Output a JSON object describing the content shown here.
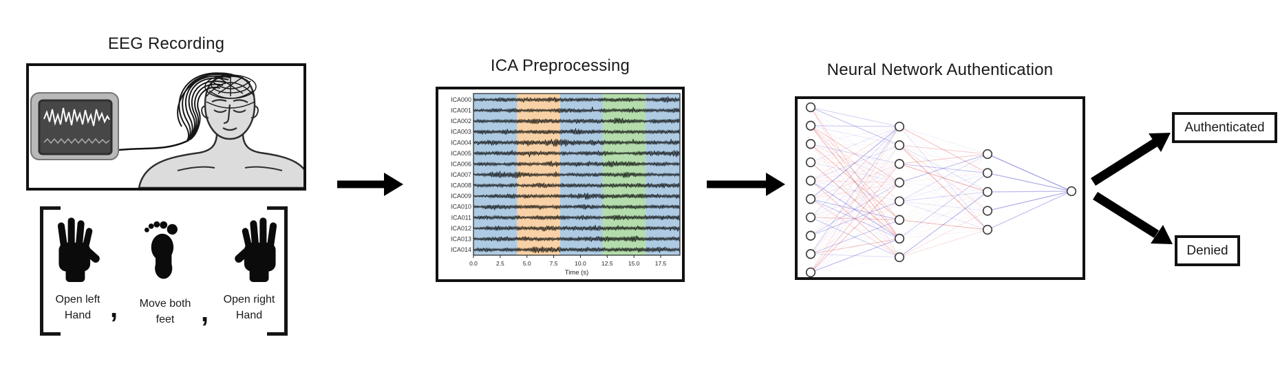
{
  "eeg": {
    "title": "EEG Recording",
    "tasks": [
      {
        "line1": "Open left",
        "line2": "Hand"
      },
      {
        "line1": "Move both",
        "line2": "feet"
      },
      {
        "line1": "Open right",
        "line2": "Hand"
      }
    ],
    "separator": ","
  },
  "ica": {
    "title": "ICA Preprocessing"
  },
  "nn": {
    "title": "Neural Network Authentication",
    "layers": [
      10,
      8,
      5,
      1
    ],
    "edge_colors": {
      "red": "#e05c5c",
      "blue": "#5c5cd6"
    },
    "node_fill": "#ffffff",
    "node_stroke": "#3d3d3d"
  },
  "results": {
    "authenticated": "Authenticated",
    "denied": "Denied"
  },
  "chart_data": {
    "type": "line",
    "subtype": "multichannel-ica-components",
    "title": "",
    "xlabel": "Time (s)",
    "ylabel": "",
    "channels": [
      "ICA000",
      "ICA001",
      "ICA002",
      "ICA003",
      "ICA004",
      "ICA005",
      "ICA006",
      "ICA007",
      "ICA008",
      "ICA009",
      "ICA010",
      "ICA011",
      "ICA012",
      "ICA013",
      "ICA014"
    ],
    "x_ticks": [
      0.0,
      2.5,
      5.0,
      7.5,
      10.0,
      12.5,
      15.0,
      17.5
    ],
    "xlim": [
      0,
      19.3
    ],
    "grid": false,
    "regions": [
      {
        "from": 0.0,
        "to": 4.1,
        "color": "#aecbe3"
      },
      {
        "from": 4.1,
        "to": 8.1,
        "color": "#f8d2a6"
      },
      {
        "from": 8.1,
        "to": 12.1,
        "color": "#aecbe3"
      },
      {
        "from": 12.1,
        "to": 16.1,
        "color": "#b4dcac"
      },
      {
        "from": 16.1,
        "to": 19.3,
        "color": "#aecbe3"
      }
    ],
    "waveform_color": "#000000"
  },
  "colors": {
    "arrow": "#000000",
    "box_border": "#111111",
    "text": "#1a1a1a",
    "skin": "#dcdcdc",
    "outline": "#2e2e2e",
    "monitor_frame": "#b9b9b9",
    "monitor_screen": "#474747",
    "monitor_wave_primary": "#ffffff",
    "monitor_wave_secondary": "#a9a9a9"
  }
}
